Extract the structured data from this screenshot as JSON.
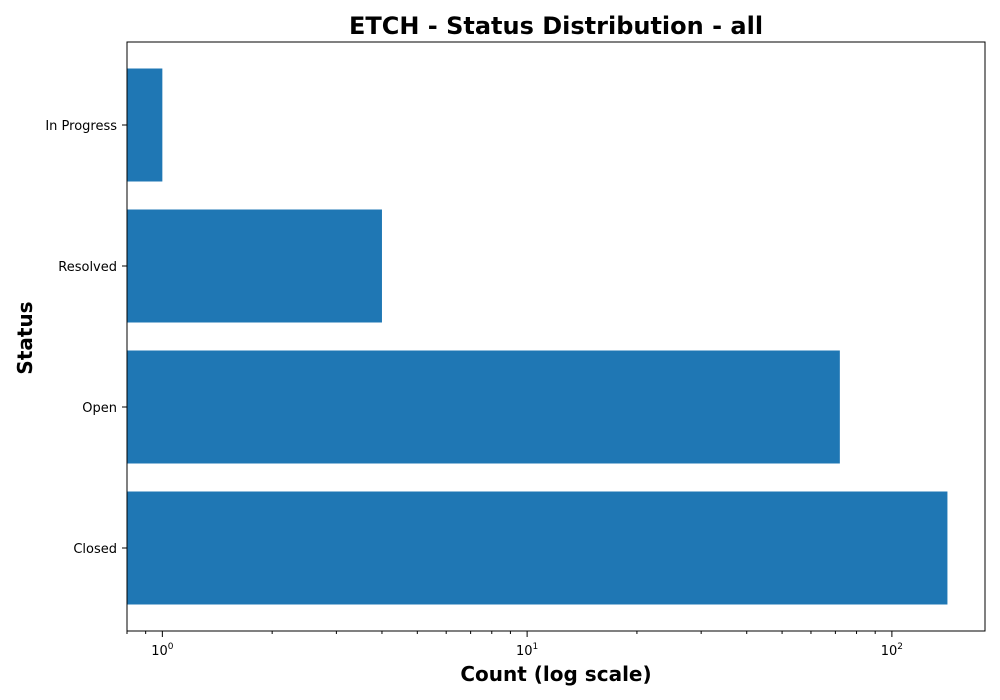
{
  "chart_data": {
    "type": "bar",
    "orientation": "horizontal",
    "title": "ETCH - Status Distribution - all",
    "xlabel": "Count (log scale)",
    "ylabel": "Status",
    "x_scale": "log",
    "xlim": [
      0.8,
      180
    ],
    "categories": [
      "Closed",
      "Open",
      "Resolved",
      "In Progress"
    ],
    "values": [
      142,
      72,
      4,
      1
    ],
    "x_ticks": [
      {
        "value": 1,
        "base": "10",
        "exponent": "0"
      },
      {
        "value": 10,
        "base": "10",
        "exponent": "1"
      },
      {
        "value": 100,
        "base": "10",
        "exponent": "2"
      }
    ],
    "grid": false,
    "bar_color": "#1f77b4"
  }
}
